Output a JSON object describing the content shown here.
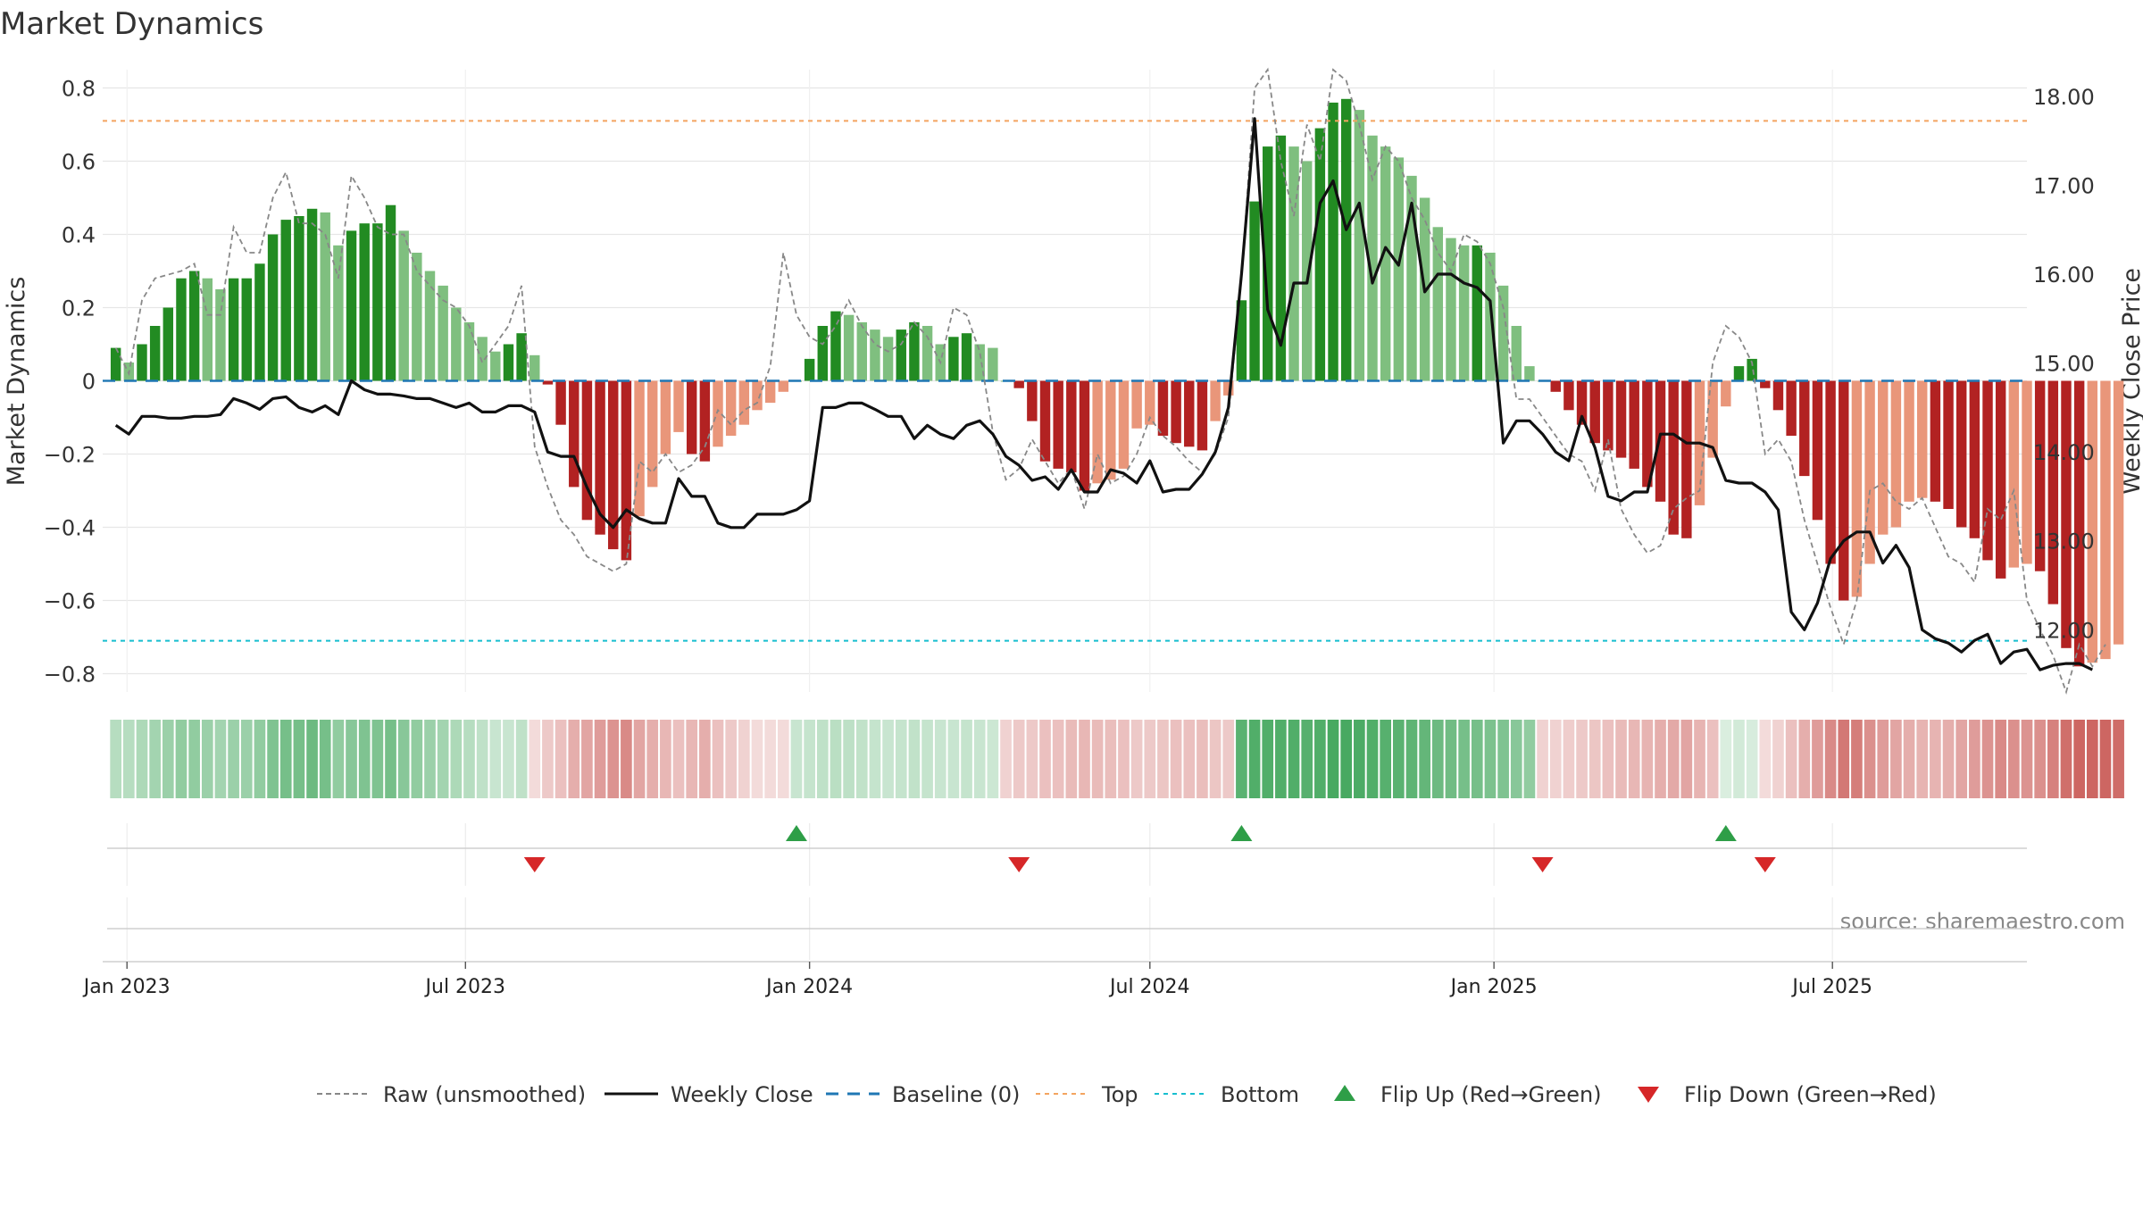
{
  "title": "Market Dynamics",
  "source_text": "source: sharemaestro.com",
  "chart_data": {
    "type": "bar",
    "ylabel_left": "Market Dynamics",
    "ylabel_right": "Weekly Close Price",
    "ylim_left": [
      -0.85,
      0.85
    ],
    "yticks_left": [
      0.8,
      0.6,
      0.4,
      0.2,
      0,
      -0.2,
      -0.4,
      -0.6,
      -0.8
    ],
    "ytick_labels_left": [
      "0.8",
      "0.6",
      "0.4",
      "0.2",
      "0",
      "−0.2",
      "−0.4",
      "−0.6",
      "−0.8"
    ],
    "ylim_right": [
      11.3,
      18.3
    ],
    "yticks_right": [
      18,
      17,
      16,
      15,
      14,
      13,
      12
    ],
    "ytick_labels_right": [
      "18.00",
      "17.00",
      "16.00",
      "15.00",
      "14.00",
      "13.00",
      "12.00"
    ],
    "xlim": [
      "2022-12-19",
      "2025-10-13"
    ],
    "xticks": [
      "2023-01-01",
      "2023-07-01",
      "2024-01-01",
      "2024-07-01",
      "2025-01-01",
      "2025-07-01"
    ],
    "xtick_labels": [
      "Jan 2023",
      "Jul 2023",
      "Jan 2024",
      "Jul 2024",
      "Jan 2025",
      "Jul 2025"
    ],
    "weeks_start": "2022-12-26",
    "week_step_days": 7,
    "top_threshold": 0.71,
    "bottom_threshold": -0.71,
    "baseline": 0,
    "colors": {
      "strong_up": "#228B22",
      "weak_up": "#7FBF7F",
      "strong_down": "#B22222",
      "weak_down": "#E9967A",
      "raw": "#888888",
      "close": "#111111",
      "baseline": "#1f77b4",
      "top": "#F4A460",
      "bottom": "#17BECF",
      "flip_up": "#2E9E47",
      "flip_down": "#D62728",
      "grid": "#e6e6e6"
    },
    "series": [
      {
        "name": "Market Dynamics",
        "values": [
          0.09,
          0.05,
          0.1,
          0.15,
          0.2,
          0.28,
          0.3,
          0.28,
          0.25,
          0.28,
          0.28,
          0.32,
          0.4,
          0.44,
          0.45,
          0.47,
          0.46,
          0.37,
          0.41,
          0.43,
          0.43,
          0.48,
          0.41,
          0.35,
          0.3,
          0.26,
          0.2,
          0.16,
          0.12,
          0.08,
          0.1,
          0.13,
          0.07,
          -0.01,
          -0.12,
          -0.29,
          -0.38,
          -0.42,
          -0.46,
          -0.49,
          -0.37,
          -0.29,
          -0.2,
          -0.14,
          -0.2,
          -0.22,
          -0.18,
          -0.15,
          -0.12,
          -0.08,
          -0.06,
          -0.03,
          0,
          0.06,
          0.15,
          0.19,
          0.18,
          0.16,
          0.14,
          0.12,
          0.14,
          0.16,
          0.15,
          0.1,
          0.12,
          0.13,
          0.1,
          0.09,
          0,
          -0.02,
          -0.11,
          -0.22,
          -0.24,
          -0.25,
          -0.3,
          -0.28,
          -0.27,
          -0.24,
          -0.13,
          -0.12,
          -0.15,
          -0.17,
          -0.18,
          -0.19,
          -0.11,
          -0.04,
          0.22,
          0.49,
          0.64,
          0.67,
          0.64,
          0.6,
          0.69,
          0.76,
          0.77,
          0.74,
          0.67,
          0.64,
          0.61,
          0.56,
          0.5,
          0.42,
          0.39,
          0.37,
          0.37,
          0.35,
          0.26,
          0.15,
          0.04,
          0,
          -0.03,
          -0.08,
          -0.12,
          -0.17,
          -0.19,
          -0.21,
          -0.24,
          -0.29,
          -0.33,
          -0.42,
          -0.43,
          -0.34,
          -0.21,
          -0.07,
          0.04,
          0.06,
          -0.02,
          -0.08,
          -0.15,
          -0.26,
          -0.38,
          -0.5,
          -0.6,
          -0.59,
          -0.5,
          -0.42,
          -0.4,
          -0.33,
          -0.32,
          -0.33,
          -0.35,
          -0.4,
          -0.43,
          -0.49,
          -0.54,
          -0.51,
          -0.5,
          -0.52,
          -0.61,
          -0.73,
          -0.78,
          -0.77,
          -0.76,
          -0.72
        ]
      },
      {
        "name": "Raw (unsmoothed)",
        "values": [
          0.09,
          0.02,
          0.22,
          0.28,
          0.29,
          0.3,
          0.32,
          0.18,
          0.18,
          0.42,
          0.35,
          0.35,
          0.5,
          0.57,
          0.43,
          0.43,
          0.4,
          0.28,
          0.56,
          0.5,
          0.42,
          0.4,
          0.4,
          0.3,
          0.26,
          0.22,
          0.2,
          0.15,
          0.05,
          0.1,
          0.15,
          0.26,
          -0.18,
          -0.29,
          -0.38,
          -0.42,
          -0.48,
          -0.5,
          -0.52,
          -0.5,
          -0.22,
          -0.25,
          -0.2,
          -0.25,
          -0.23,
          -0.18,
          -0.08,
          -0.12,
          -0.08,
          -0.06,
          0.04,
          0.35,
          0.18,
          0.12,
          0.1,
          0.15,
          0.22,
          0.15,
          0.1,
          0.08,
          0.1,
          0.16,
          0.12,
          0.05,
          0.2,
          0.18,
          0.08,
          -0.14,
          -0.27,
          -0.24,
          -0.16,
          -0.22,
          -0.28,
          -0.24,
          -0.35,
          -0.2,
          -0.28,
          -0.26,
          -0.2,
          -0.1,
          -0.15,
          -0.18,
          -0.22,
          -0.25,
          -0.2,
          -0.1,
          0.28,
          0.8,
          0.85,
          0.6,
          0.45,
          0.7,
          0.6,
          0.85,
          0.82,
          0.7,
          0.55,
          0.64,
          0.6,
          0.5,
          0.44,
          0.35,
          0.3,
          0.4,
          0.38,
          0.32,
          0.2,
          -0.05,
          -0.05,
          -0.1,
          -0.15,
          -0.2,
          -0.22,
          -0.3,
          -0.16,
          -0.35,
          -0.42,
          -0.47,
          -0.45,
          -0.35,
          -0.32,
          -0.3,
          0.05,
          0.15,
          0.12,
          0.05,
          -0.2,
          -0.16,
          -0.22,
          -0.38,
          -0.5,
          -0.62,
          -0.72,
          -0.6,
          -0.3,
          -0.28,
          -0.33,
          -0.35,
          -0.32,
          -0.4,
          -0.48,
          -0.5,
          -0.55,
          -0.35,
          -0.38,
          -0.3,
          -0.6,
          -0.68,
          -0.75,
          -0.85,
          -0.72,
          -0.78,
          -0.72
        ]
      },
      {
        "name": "Weekly Close",
        "axis": "right",
        "values": [
          14.3,
          14.2,
          14.4,
          14.4,
          14.38,
          14.38,
          14.4,
          14.4,
          14.42,
          14.6,
          14.55,
          14.48,
          14.6,
          14.62,
          14.5,
          14.45,
          14.52,
          14.42,
          14.8,
          14.7,
          14.65,
          14.65,
          14.63,
          14.6,
          14.6,
          14.55,
          14.5,
          14.55,
          14.45,
          14.45,
          14.52,
          14.52,
          14.45,
          14.0,
          13.95,
          13.95,
          13.6,
          13.3,
          13.15,
          13.35,
          13.25,
          13.2,
          13.2,
          13.7,
          13.5,
          13.5,
          13.2,
          13.15,
          13.15,
          13.3,
          13.3,
          13.3,
          13.35,
          13.45,
          14.5,
          14.5,
          14.55,
          14.55,
          14.48,
          14.4,
          14.4,
          14.15,
          14.3,
          14.2,
          14.15,
          14.3,
          14.35,
          14.2,
          13.95,
          13.85,
          13.68,
          13.72,
          13.58,
          13.8,
          13.55,
          13.55,
          13.8,
          13.76,
          13.65,
          13.9,
          13.55,
          13.58,
          13.58,
          13.75,
          14.0,
          14.5,
          16.0,
          17.75,
          15.6,
          15.2,
          15.9,
          15.9,
          16.8,
          17.05,
          16.5,
          16.8,
          15.9,
          16.3,
          16.1,
          16.8,
          15.8,
          16.0,
          16.0,
          15.9,
          15.85,
          15.7,
          14.1,
          14.35,
          14.35,
          14.2,
          14.0,
          13.9,
          14.4,
          14.05,
          13.5,
          13.45,
          13.55,
          13.55,
          14.2,
          14.2,
          14.1,
          14.1,
          14.05,
          13.68,
          13.65,
          13.65,
          13.55,
          13.35,
          12.2,
          12.0,
          12.3,
          12.8,
          13.0,
          13.1,
          13.1,
          12.75,
          12.95,
          12.7,
          12.0,
          11.9,
          11.85,
          11.75,
          11.88,
          11.95,
          11.62,
          11.75,
          11.78,
          11.55,
          11.6,
          11.62,
          11.62,
          11.55
        ]
      }
    ],
    "regime_strip": {
      "values": [
        0.4,
        0.4,
        0.45,
        0.5,
        0.55,
        0.6,
        0.6,
        0.55,
        0.5,
        0.55,
        0.55,
        0.6,
        0.7,
        0.75,
        0.75,
        0.8,
        0.75,
        0.6,
        0.65,
        0.7,
        0.7,
        0.75,
        0.65,
        0.6,
        0.55,
        0.5,
        0.45,
        0.4,
        0.35,
        0.3,
        0.3,
        0.35,
        -0.2,
        -0.3,
        -0.35,
        -0.45,
        -0.5,
        -0.55,
        -0.6,
        -0.65,
        -0.5,
        -0.45,
        -0.4,
        -0.35,
        -0.4,
        -0.45,
        -0.35,
        -0.3,
        -0.25,
        -0.2,
        -0.18,
        -0.15,
        0.3,
        0.32,
        0.35,
        0.38,
        0.36,
        0.34,
        0.32,
        0.3,
        0.32,
        0.34,
        0.32,
        0.3,
        0.3,
        0.32,
        0.3,
        0.28,
        -0.25,
        -0.3,
        -0.3,
        -0.35,
        -0.35,
        -0.38,
        -0.4,
        -0.38,
        -0.36,
        -0.35,
        -0.3,
        -0.3,
        -0.32,
        -0.35,
        -0.35,
        -0.36,
        -0.32,
        -0.3,
        0.9,
        0.95,
        0.95,
        0.95,
        0.95,
        0.92,
        0.95,
        1.0,
        1.0,
        0.98,
        0.95,
        0.92,
        0.9,
        0.88,
        0.85,
        0.8,
        0.78,
        0.75,
        0.75,
        0.72,
        0.7,
        0.65,
        0.6,
        -0.25,
        -0.25,
        -0.28,
        -0.3,
        -0.32,
        -0.35,
        -0.38,
        -0.4,
        -0.42,
        -0.45,
        -0.48,
        -0.5,
        -0.42,
        -0.35,
        0.2,
        0.25,
        0.22,
        -0.15,
        -0.25,
        -0.35,
        -0.45,
        -0.55,
        -0.65,
        -0.75,
        -0.72,
        -0.62,
        -0.55,
        -0.5,
        -0.45,
        -0.42,
        -0.42,
        -0.45,
        -0.5,
        -0.55,
        -0.6,
        -0.65,
        -0.62,
        -0.6,
        -0.62,
        -0.7,
        -0.8,
        -0.85,
        -0.85,
        -0.85,
        -0.82
      ]
    },
    "flip_up_weeks": [
      52,
      86,
      123
    ],
    "flip_down_weeks": [
      32,
      69,
      109,
      126
    ],
    "legend": [
      {
        "label": "Raw (unsmoothed)",
        "style": "raw"
      },
      {
        "label": "Weekly Close",
        "style": "close"
      },
      {
        "label": "Baseline (0)",
        "style": "baseline"
      },
      {
        "label": "Top",
        "style": "top"
      },
      {
        "label": "Bottom",
        "style": "bottom"
      },
      {
        "label": "Flip Up (Red→Green)",
        "style": "flip_up"
      },
      {
        "label": "Flip Down (Green→Red)",
        "style": "flip_down"
      }
    ]
  }
}
